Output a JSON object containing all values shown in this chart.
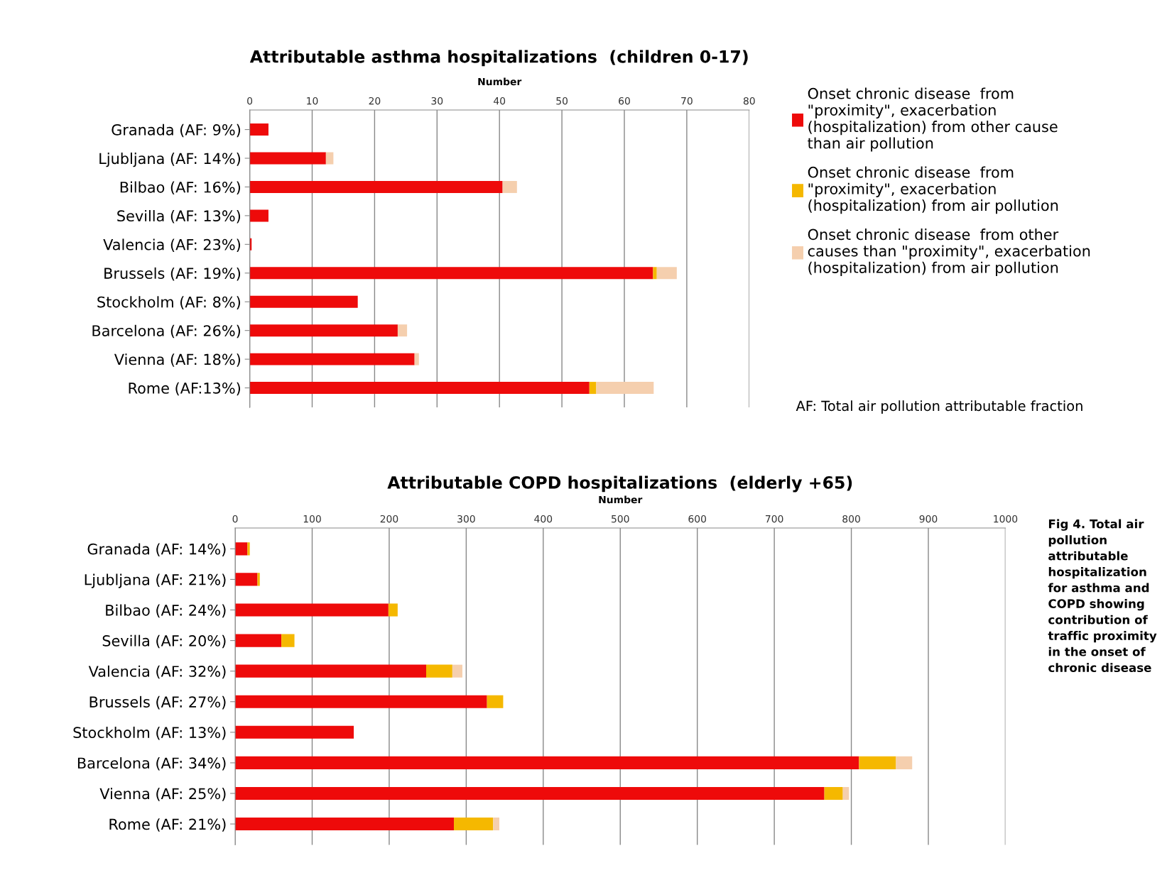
{
  "chart_data": [
    {
      "type": "bar",
      "orientation": "horizontal",
      "stacked": true,
      "title": "Attributable asthma hospitalizations  (children 0-17)",
      "xlabel": "Number",
      "categories": [
        "Granada (AF: 9%)",
        "Ljubljana (AF: 14%)",
        "Bilbao (AF: 16%)",
        "Sevilla (AF: 13%)",
        "Valencia (AF: 23%)",
        "Brussels (AF: 19%)",
        "Stockholm (AF: 8%)",
        "Barcelona (AF: 26%)",
        "Vienna (AF: 18%)",
        "Rome (AF:13%)"
      ],
      "series": [
        {
          "name": "Onset chronic disease  from\n\"proximity\", exacerbation\n(hospitalization) from other cause\nthan air pollution",
          "color": "#ee0a0a",
          "values": [
            3.0,
            12.2,
            40.5,
            3.0,
            0.3,
            64.6,
            17.3,
            23.7,
            26.4,
            54.4
          ]
        },
        {
          "name": "Onset chronic disease  from\n\"proximity\", exacerbation\n(hospitalization) from air pollution",
          "color": "#f5b800",
          "values": [
            0,
            0,
            0,
            0,
            0,
            0.6,
            0,
            0,
            0,
            1.1
          ]
        },
        {
          "name": "Onset chronic disease  from other\ncauses than \"proximity\", exacerbation\n(hospitalization) from air pollution",
          "color": "#f5cfae",
          "values": [
            0,
            1.2,
            2.3,
            0,
            0,
            3.2,
            0,
            1.5,
            0.7,
            9.2
          ]
        }
      ],
      "xlim": [
        0,
        80
      ],
      "xticks": [
        0,
        10,
        20,
        30,
        40,
        50,
        60,
        70,
        80
      ],
      "grid": "x",
      "legend": "right",
      "annotations": [
        "AF: Total air pollution attributable fraction"
      ]
    },
    {
      "type": "bar",
      "orientation": "horizontal",
      "stacked": true,
      "title": "Attributable COPD hospitalizations  (elderly +65)",
      "xlabel": "Number",
      "categories": [
        "Granada (AF: 14%)",
        "Ljubljana (AF: 21%)",
        "Bilbao (AF: 24%)",
        "Sevilla (AF: 20%)",
        "Valencia (AF: 32%)",
        "Brussels (AF: 27%)",
        "Stockholm (AF: 13%)",
        "Barcelona (AF: 34%)",
        "Vienna (AF: 25%)",
        "Rome (AF: 21%)"
      ],
      "series": [
        {
          "color": "#ee0a0a",
          "values": [
            16,
            29,
            199,
            60,
            248,
            327,
            154,
            810,
            765,
            284
          ]
        },
        {
          "color": "#f5b800",
          "values": [
            3,
            3,
            12,
            17,
            34,
            21,
            0,
            48,
            24,
            51
          ]
        },
        {
          "color": "#f5cfae",
          "values": [
            0,
            0,
            0,
            0,
            13,
            0,
            0,
            21,
            8,
            8
          ]
        }
      ],
      "xlim": [
        0,
        1000
      ],
      "xticks": [
        0,
        100,
        200,
        300,
        400,
        500,
        600,
        700,
        800,
        900,
        1000
      ],
      "grid": "x",
      "annotations": [
        "Fig 4. Total air pollution attributable hospitalization for asthma and COPD showing contribution of traffic proximity in the onset of chronic disease"
      ]
    }
  ]
}
